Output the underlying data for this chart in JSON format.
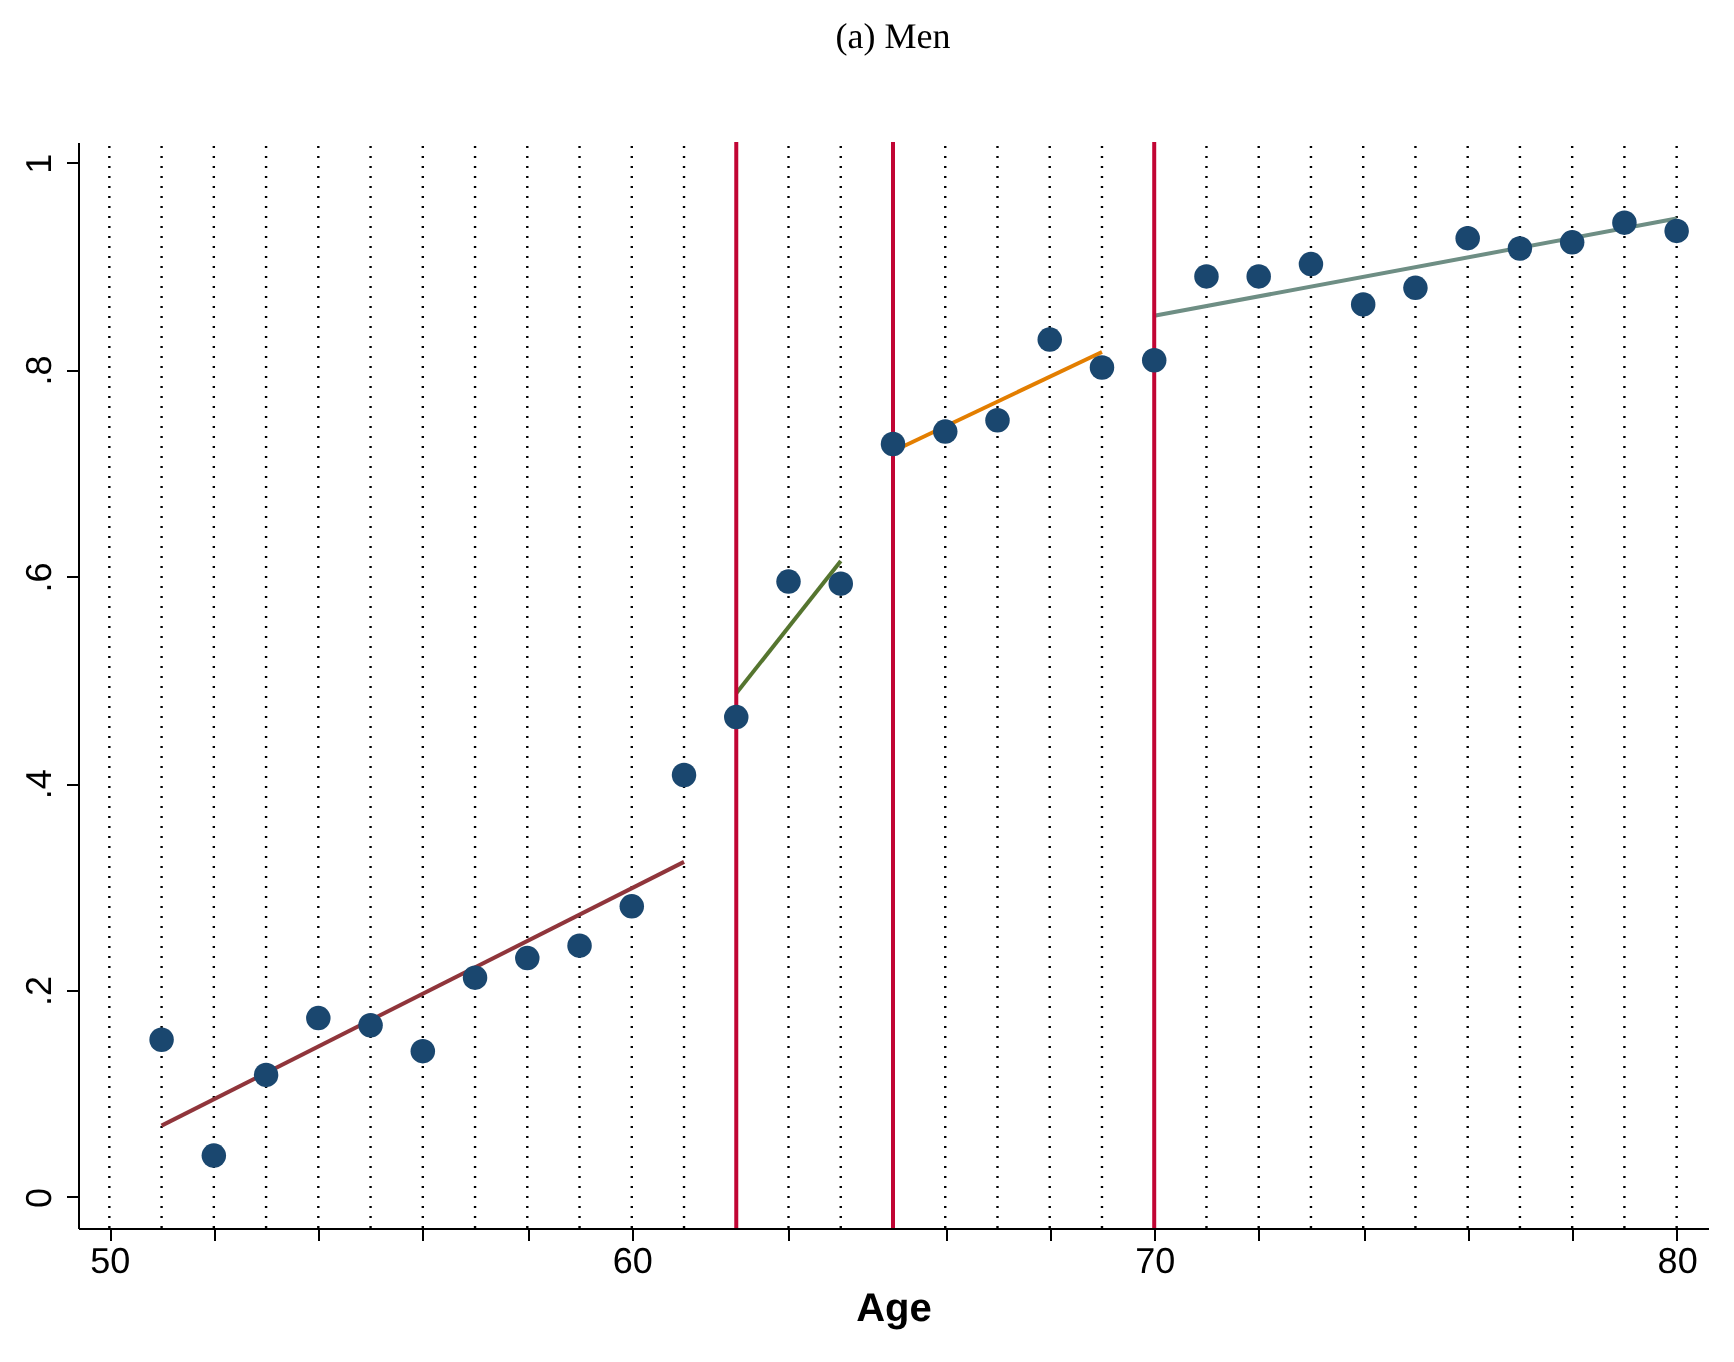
{
  "chart_data": {
    "type": "scatter",
    "title": "(a) Men",
    "xlabel": "Age",
    "x": [
      51,
      52,
      53,
      54,
      55,
      56,
      57,
      58,
      59,
      60,
      61,
      62,
      63,
      64,
      65,
      66,
      67,
      68,
      69,
      70,
      71,
      72,
      73,
      74,
      75,
      76,
      77,
      78,
      79,
      80
    ],
    "series": [
      {
        "color": "#1a476f",
        "marker": "circle",
        "values": [
          0.152,
          0.04,
          0.118,
          0.173,
          0.166,
          0.141,
          0.212,
          0.231,
          0.243,
          0.281,
          0.408,
          0.464,
          0.595,
          0.593,
          0.728,
          0.74,
          0.751,
          0.829,
          0.802,
          0.809,
          0.89,
          0.89,
          0.902,
          0.863,
          0.879,
          0.927,
          0.917,
          0.923,
          0.942,
          0.934
        ]
      },
      {
        "type": "line",
        "color": "#90353b",
        "x": [
          51,
          61
        ],
        "values": [
          0.069,
          0.324
        ]
      },
      {
        "type": "line",
        "color": "#55752f",
        "x": [
          62,
          64
        ],
        "values": [
          0.487,
          0.615
        ]
      },
      {
        "type": "line",
        "color": "#e37e00",
        "x": [
          65,
          69
        ],
        "values": [
          0.721,
          0.817
        ]
      },
      {
        "type": "line",
        "color": "#6e8e84",
        "x": [
          70,
          80
        ],
        "values": [
          0.852,
          0.946
        ]
      }
    ],
    "line_style": "solid",
    "grid": "x",
    "xlim": [
      49.4,
      80.6
    ],
    "xticks": [
      50,
      {
        "value": 51,
        "label": null
      },
      {
        "value": 52,
        "label": null
      },
      {
        "value": 53,
        "label": null
      },
      {
        "value": 54,
        "label": null
      },
      {
        "value": 55,
        "label": null
      },
      {
        "value": 56,
        "label": null
      },
      {
        "value": 57,
        "label": null
      },
      {
        "value": 58,
        "label": null
      },
      {
        "value": 59,
        "label": null
      },
      60,
      {
        "value": 61,
        "label": null
      },
      {
        "value": 63,
        "label": null
      },
      {
        "value": 64,
        "label": null
      },
      {
        "value": 66,
        "label": null
      },
      {
        "value": 67,
        "label": null
      },
      {
        "value": 68,
        "label": null
      },
      {
        "value": 69,
        "label": null
      },
      {
        "value": 70,
        "label": "70"
      },
      {
        "value": 71,
        "label": null
      },
      {
        "value": 72,
        "label": null
      },
      {
        "value": 73,
        "label": null
      },
      {
        "value": 74,
        "label": null
      },
      {
        "value": 75,
        "label": null
      },
      {
        "value": 76,
        "label": null
      },
      {
        "value": 77,
        "label": null
      },
      {
        "value": 78,
        "label": null
      },
      {
        "value": 79,
        "label": null
      },
      80
    ],
    "ylim": [
      -0.03,
      1.02
    ],
    "yticks": [
      {
        "value": 0,
        "label": "0"
      },
      {
        "value": 0.2,
        "label": ".2"
      },
      {
        "value": 0.4,
        "label": ".4"
      },
      {
        "value": 0.6,
        "label": ".6"
      },
      {
        "value": 0.8,
        "label": ".8"
      },
      {
        "value": 1,
        "label": "1"
      }
    ],
    "ref_lines": [
      {
        "axis": "x",
        "value": 62,
        "color": "#c10534"
      },
      {
        "axis": "x",
        "value": 65,
        "color": "#c10534"
      },
      {
        "axis": "x",
        "value": 70,
        "color": "#c10534"
      }
    ]
  }
}
